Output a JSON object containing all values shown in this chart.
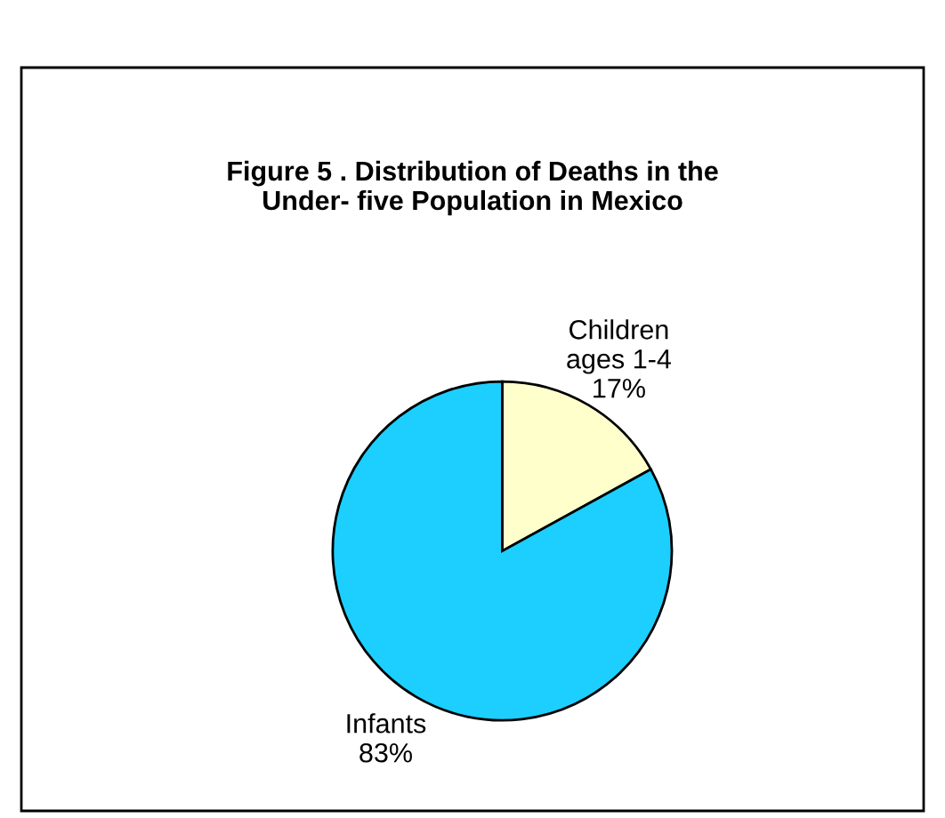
{
  "chart_data": {
    "type": "pie",
    "title": "Figure 5 . Distribution of Deaths in the\nUnder- five Population in Mexico",
    "categories": [
      "Children\nages 1-4",
      "Infants"
    ],
    "values": [
      17,
      83
    ],
    "colors": [
      "#ffffcc",
      "#1ccfff"
    ],
    "value_labels": [
      "17%",
      "83%"
    ],
    "legend": false
  }
}
